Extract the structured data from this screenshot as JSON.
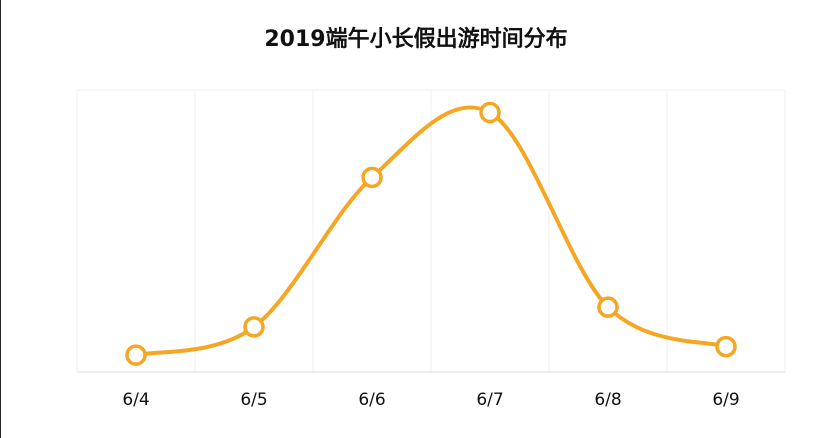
{
  "chart_data": {
    "type": "line",
    "title": "2019端午小长假出游时间分布",
    "categories": [
      "6/4",
      "6/5",
      "6/6",
      "6/7",
      "6/8",
      "6/9"
    ],
    "values": [
      6,
      16,
      69,
      92,
      23,
      9
    ],
    "color": "#f5a623",
    "smooth": true,
    "ylim": [
      0,
      100
    ],
    "grid": true
  }
}
